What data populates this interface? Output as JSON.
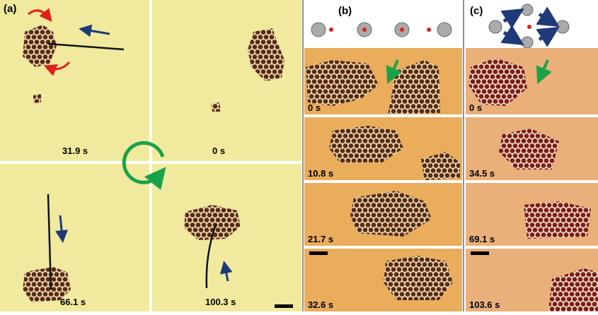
{
  "panels": {
    "a": {
      "label": "(a)",
      "frames": [
        {
          "time": "31.9 s"
        },
        {
          "time": "0 s"
        },
        {
          "time": "66.1 s"
        },
        {
          "time": "100.3 s"
        }
      ]
    },
    "b": {
      "label": "(b)",
      "frames": [
        {
          "time": "0 s"
        },
        {
          "time": "10.8 s"
        },
        {
          "time": "21.7 s"
        },
        {
          "time": "32.6 s"
        }
      ]
    },
    "c": {
      "label": "(c)",
      "frames": [
        {
          "time": "0 s"
        },
        {
          "time": "34.5 s"
        },
        {
          "time": "69.1 s"
        },
        {
          "time": "103.6 s"
        }
      ]
    }
  }
}
